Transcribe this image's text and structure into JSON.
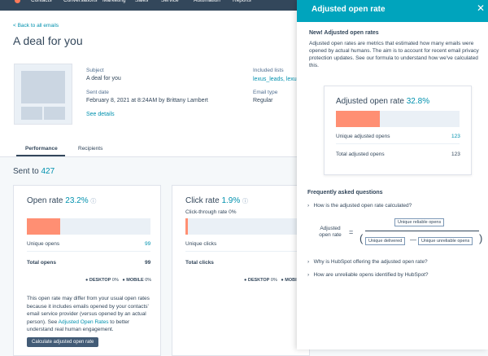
{
  "nav": {
    "items": [
      "Contacts",
      "Conversations",
      "Marketing",
      "Sales",
      "Service",
      "Automation",
      "Reports"
    ]
  },
  "header": {
    "back_link": "< Back to all emails",
    "title": "A deal for you"
  },
  "details": {
    "subject_label": "Subject",
    "subject": "A deal for you",
    "sent_date_label": "Sent date",
    "sent_date": "February 8, 2021 at 8:24AM by Brittany Lambert",
    "see_details": "See details",
    "lists_label": "Included lists",
    "lists": "lexus_leads, lexus",
    "email_type_label": "Email type",
    "email_type": "Regular"
  },
  "tabs": [
    "Performance",
    "Recipients"
  ],
  "sent": {
    "label": "Sent to",
    "count": "427"
  },
  "open_card": {
    "title": "Open rate",
    "rate": "23.2%",
    "rows": [
      [
        "Unique opens",
        "99"
      ],
      [
        "Total opens",
        "99"
      ]
    ],
    "devices": [
      "DESKTOP",
      "0%",
      "MOBILE",
      "0%"
    ],
    "note_before": "This open rate may differ from your usual open rates because it includes emails opened by your contacts' email service provider (versus opened by an actual person). See",
    "note_link": "Adjusted Open Rates",
    "note_after": "to better understand real human engagement.",
    "button": "Calculate adjusted open rate"
  },
  "click_card": {
    "title": "Click rate",
    "rate": "1.9%",
    "subtitle": "Click-through rate 0%",
    "rows": [
      "Unique clicks",
      "Total clicks"
    ],
    "devices": [
      "DESKTOP",
      "0%",
      "MOBILE"
    ]
  },
  "panel": {
    "title": "Adjusted open rate",
    "intro_title": "New! Adjusted open rates",
    "intro": "Adjusted open rates are metrics that estimated how many emails were opened by actual humans. The aim is to account for recent email privacy protection updates. See our formula to understand how we've calculated this.",
    "box": {
      "title": "Adjusted open rate",
      "rate": "32.8%",
      "rows": [
        [
          "Unique adjusted opens",
          "123"
        ],
        [
          "Total adjusted opens",
          "123"
        ]
      ]
    },
    "faq_title": "Frequently asked questions",
    "faq": [
      "How is the adjusted open rate calculated?",
      "Why is HubSpot offering the adjusted open rate?",
      "How are unreliable opens identified by HubSpot?"
    ],
    "formula": {
      "left": "Adjusted open rate",
      "numerator": "Unique reliable opens",
      "denominator_a": "Unique delivered",
      "denominator_b": "Unique unreliable opens"
    }
  }
}
